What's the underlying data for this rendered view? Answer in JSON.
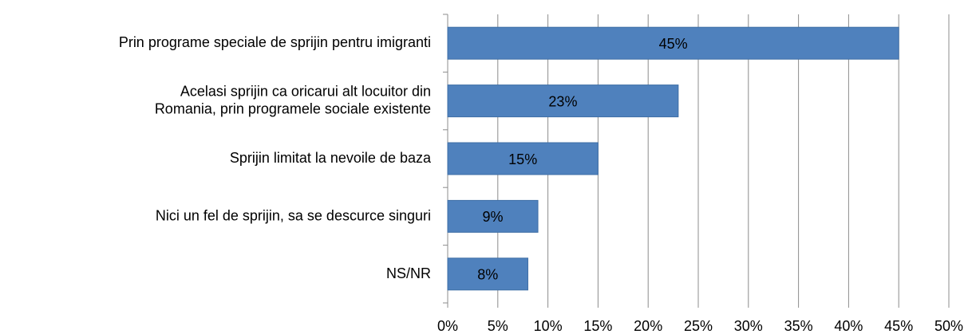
{
  "chart_data": {
    "type": "bar",
    "orientation": "horizontal",
    "categories": [
      "Prin programe speciale de sprijin pentru imigranti",
      "Acelasi sprijin ca oricarui alt locuitor din Romania, prin programele sociale existente",
      "Sprijin limitat la nevoile de baza",
      "Nici un fel de sprijin, sa se descurce singuri",
      "NS/NR"
    ],
    "values": [
      45,
      23,
      15,
      9,
      8
    ],
    "value_labels": [
      "45%",
      "23%",
      "15%",
      "9%",
      "8%"
    ],
    "color": "#4f81bd",
    "xlim": [
      0,
      50
    ],
    "xticks": [
      {
        "value": 0,
        "label": "0%"
      },
      {
        "value": 5,
        "label": "5%"
      },
      {
        "value": 10,
        "label": "10%"
      },
      {
        "value": 15,
        "label": "15%"
      },
      {
        "value": 20,
        "label": "20%"
      },
      {
        "value": 25,
        "label": "25%"
      },
      {
        "value": 30,
        "label": "30%"
      },
      {
        "value": 35,
        "label": "35%"
      },
      {
        "value": 40,
        "label": "40%"
      },
      {
        "value": 45,
        "label": "45%"
      },
      {
        "value": 50,
        "label": "50%"
      }
    ],
    "grid": true
  }
}
